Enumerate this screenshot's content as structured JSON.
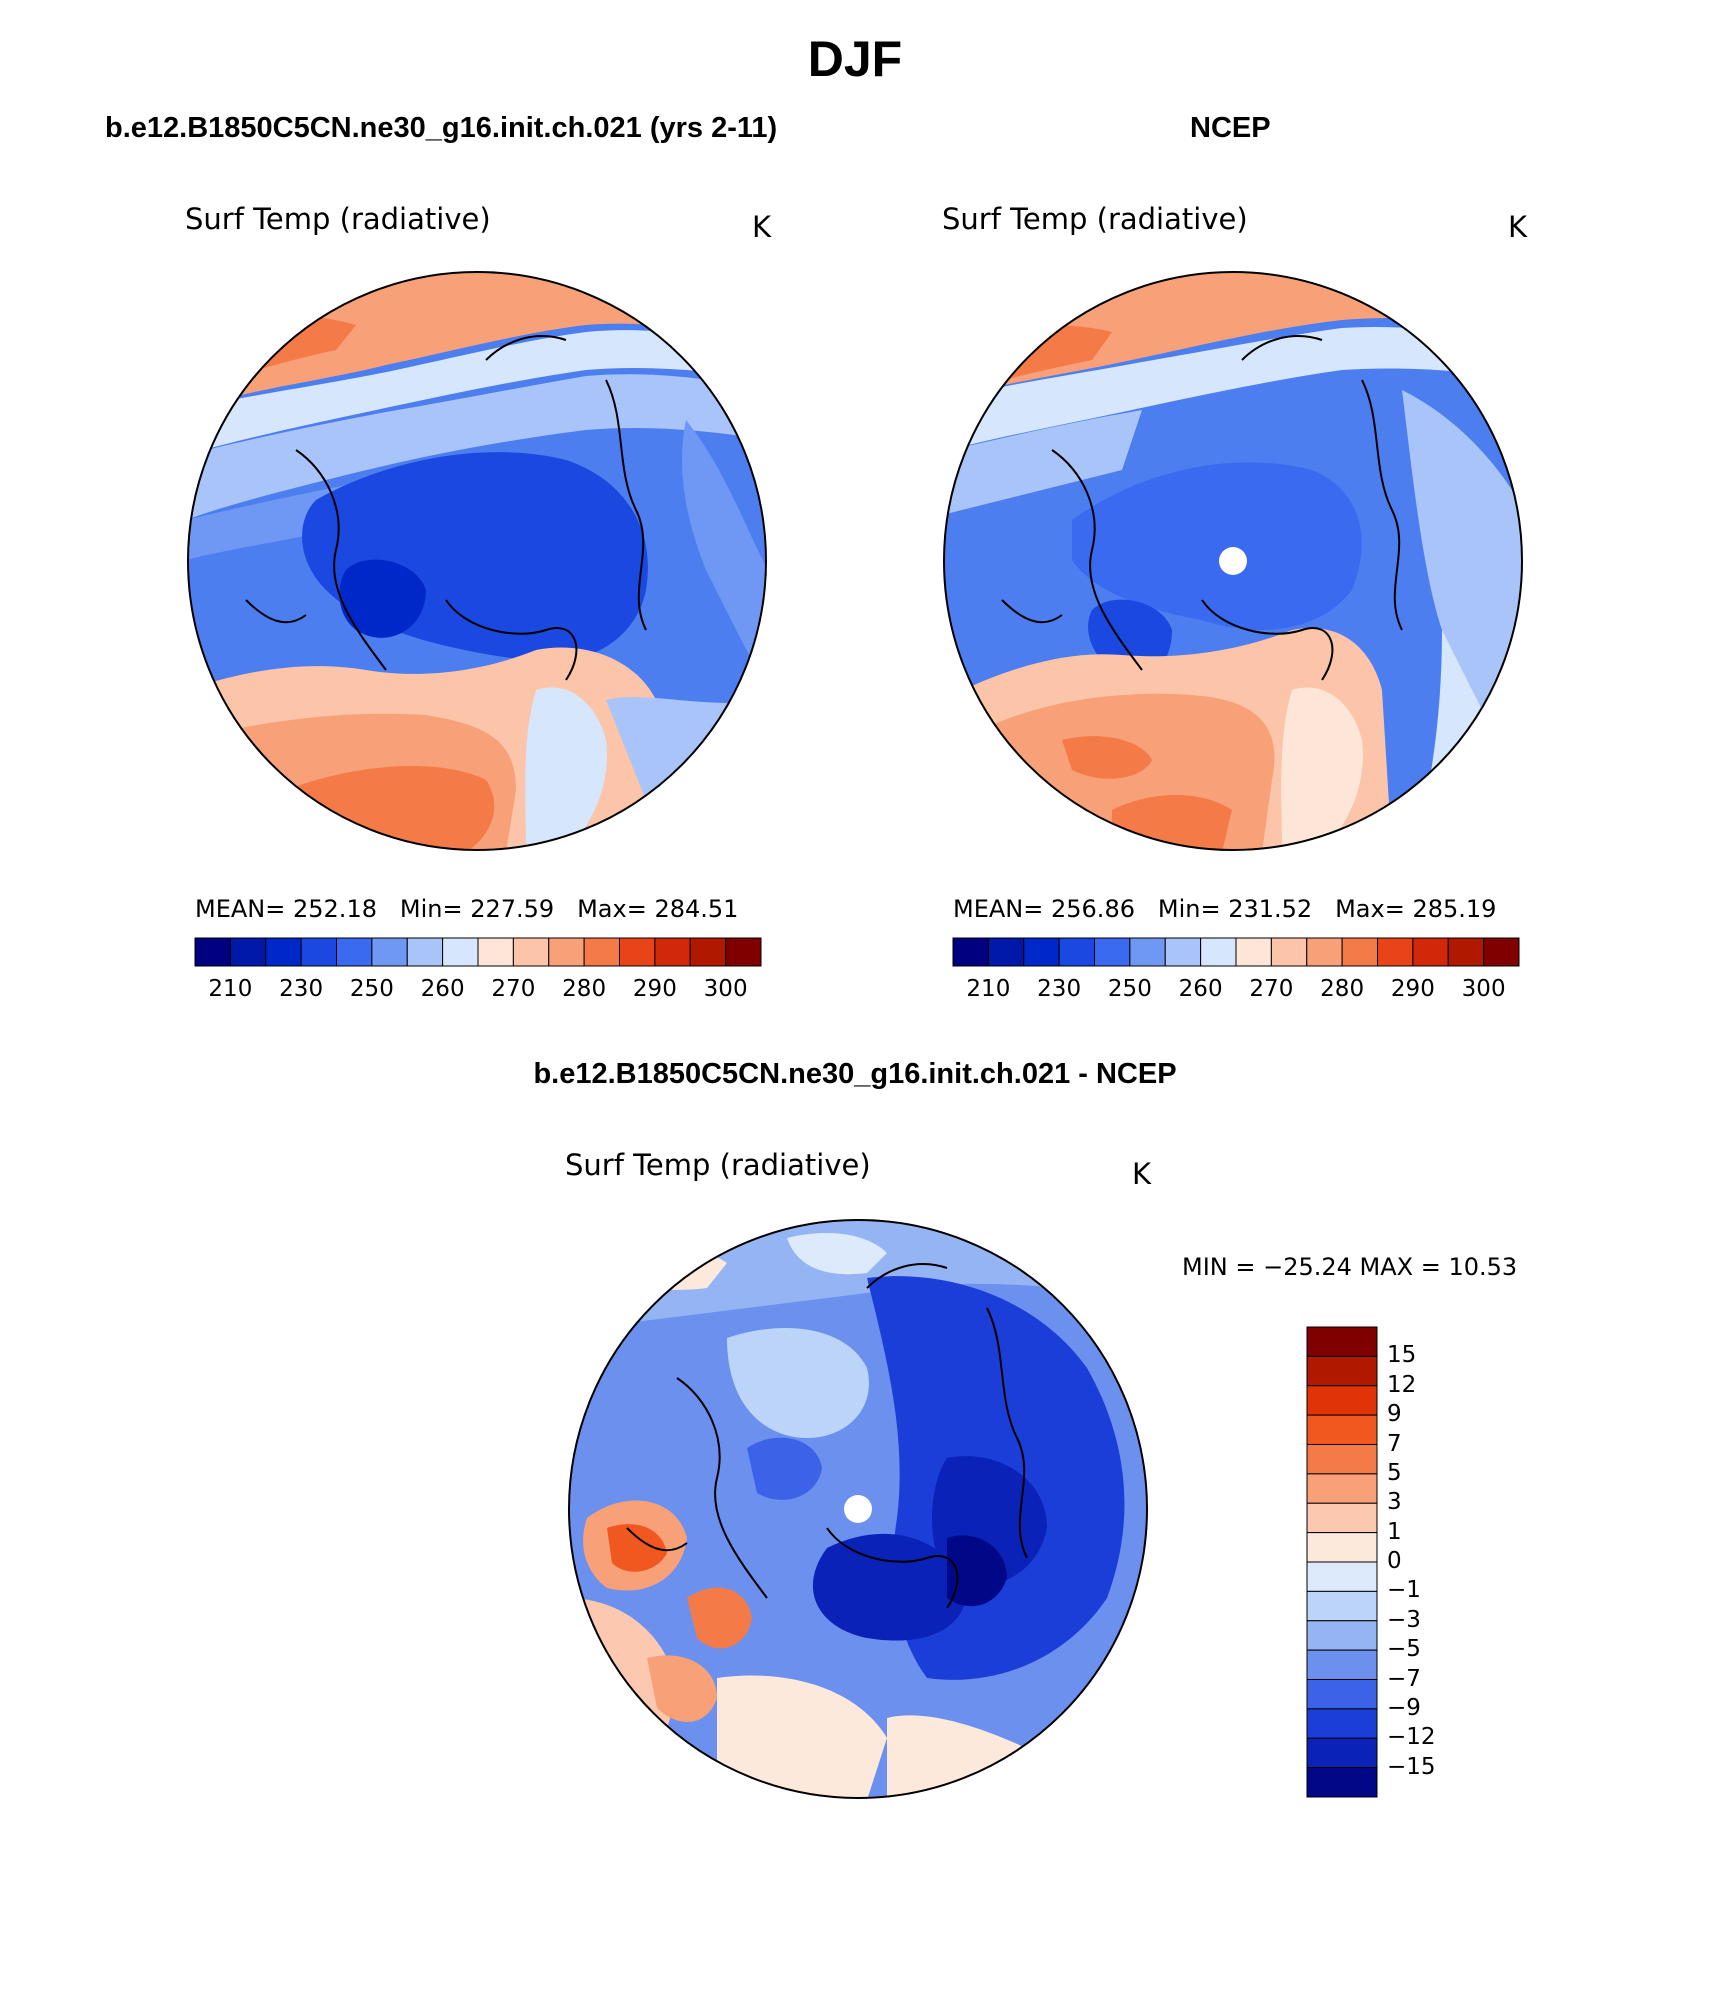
{
  "title": "DJF",
  "panels": {
    "model": {
      "case_title": "b.e12.B1850C5CN.ne30_g16.init.ch.021 (yrs 2-11)",
      "variable": "Surf Temp (radiative)",
      "units": "K",
      "mean_label": "MEAN=",
      "mean": "252.18",
      "min_label": "Min=",
      "min": "227.59",
      "max_label": "Max=",
      "max": "284.51"
    },
    "obs": {
      "case_title": "NCEP",
      "variable": "Surf Temp (radiative)",
      "units": "K",
      "mean_label": "MEAN=",
      "mean": "256.86",
      "min_label": "Min=",
      "min": "231.52",
      "max_label": "Max=",
      "max": "285.19"
    },
    "diff": {
      "case_title": "b.e12.B1850C5CN.ne30_g16.init.ch.021 - NCEP",
      "variable": "Surf Temp (radiative)",
      "units": "K",
      "min_max_text": "MIN = −25.24 MAX =   10.53"
    }
  },
  "abs_colorbar": {
    "colors": [
      "#000080",
      "#0018a8",
      "#0028c8",
      "#1a48e0",
      "#3a6af0",
      "#6e98f4",
      "#a8c4f8",
      "#d6e6fc",
      "#fde6d8",
      "#fcc4a8",
      "#f8a078",
      "#f47a48",
      "#e84418",
      "#d02808",
      "#b01800",
      "#800000"
    ],
    "tick_labels": [
      "210",
      "230",
      "250",
      "260",
      "270",
      "280",
      "290",
      "300"
    ]
  },
  "diff_colorbar": {
    "colors": [
      "#800000",
      "#b01800",
      "#e03408",
      "#f05820",
      "#f47a48",
      "#f8a078",
      "#fcc8b0",
      "#fde8dc",
      "#dceafc",
      "#bcd4f8",
      "#94b4f4",
      "#6c90ee",
      "#3c62e8",
      "#1c3ed8",
      "#0a22b8",
      "#000888"
    ],
    "tick_labels": [
      "15",
      "12",
      "9",
      "7",
      "5",
      "3",
      "1",
      "0",
      "−1",
      "−3",
      "−5",
      "−7",
      "−9",
      "−12",
      "−15"
    ]
  }
}
